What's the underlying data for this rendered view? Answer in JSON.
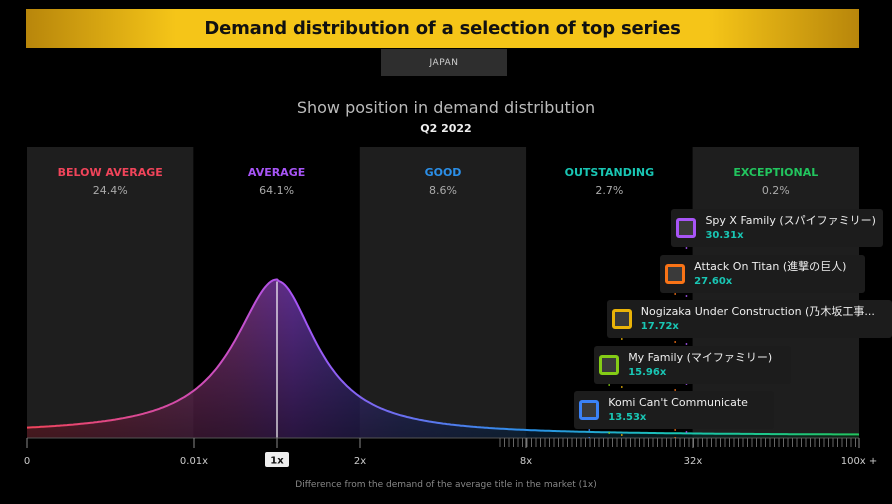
{
  "title": "Demand distribution of a selection of top series",
  "region": "JAPAN",
  "subtitle": "Show position in demand distribution",
  "period": "Q2 2022",
  "xlabel": "Difference from the demand of the average title in the market (1x)",
  "colors": {
    "banner": "#f5c518",
    "below_average": "#f0445a",
    "average": "#a855f7",
    "good": "#2b8fe8",
    "outstanding": "#19c6b4",
    "exceptional": "#22c55e"
  },
  "chart_data": {
    "type": "area",
    "x_scale": "categorical-log",
    "x_ticks": [
      "0",
      "0.01x",
      "1x",
      "2x",
      "8x",
      "32x",
      "100x +"
    ],
    "highlighted_tick": "1x",
    "bands": [
      {
        "name": "BELOW AVERAGE",
        "share": "24.4%",
        "color": "#f0445a"
      },
      {
        "name": "AVERAGE",
        "share": "64.1%",
        "color": "#a855f7"
      },
      {
        "name": "GOOD",
        "share": "8.6%",
        "color": "#2b8fe8"
      },
      {
        "name": "OUTSTANDING",
        "share": "2.7%",
        "color": "#19c6b4"
      },
      {
        "name": "EXCEPTIONAL",
        "share": "0.2%",
        "color": "#22c55e"
      }
    ],
    "curve_peak_at": "1x",
    "titles": [
      {
        "name": "Spy X Family (スパイファミリー)",
        "label": "30.31x",
        "value": 30.31,
        "border": "#a855f7"
      },
      {
        "name": "Attack On Titan (進撃の巨人)",
        "label": "27.60x",
        "value": 27.6,
        "border": "#f97316"
      },
      {
        "name": "Nogizaka Under Construction (乃木坂工事...",
        "label": "17.72x",
        "value": 17.72,
        "border": "#eab308"
      },
      {
        "name": "My Family (マイファミリー)",
        "label": "15.96x",
        "value": 15.96,
        "border": "#84cc16"
      },
      {
        "name": "Komi Can't Communicate",
        "label": "13.53x",
        "value": 13.53,
        "border": "#3b82f6"
      }
    ]
  }
}
